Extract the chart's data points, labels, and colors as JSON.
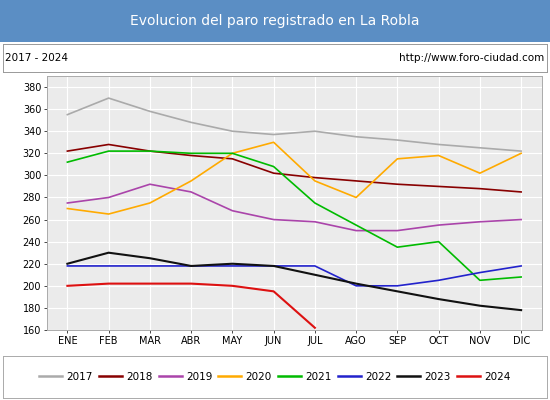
{
  "title": "Evolucion del paro registrado en La Robla",
  "title_bg": "#5b8ec4",
  "subtitle_left": "2017 - 2024",
  "subtitle_right": "http://www.foro-ciudad.com",
  "months": [
    "ENE",
    "FEB",
    "MAR",
    "ABR",
    "MAY",
    "JUN",
    "JUL",
    "AGO",
    "SEP",
    "OCT",
    "NOV",
    "DIC"
  ],
  "ylim": [
    160,
    390
  ],
  "yticks": [
    160,
    180,
    200,
    220,
    240,
    260,
    280,
    300,
    320,
    340,
    360,
    380
  ],
  "series": {
    "2017": {
      "color": "#aaaaaa",
      "linestyle": "-",
      "linewidth": 1.2,
      "data": [
        355,
        370,
        358,
        348,
        340,
        337,
        340,
        335,
        332,
        328,
        325,
        322
      ]
    },
    "2018": {
      "color": "#880000",
      "linestyle": "-",
      "linewidth": 1.2,
      "data": [
        322,
        328,
        322,
        318,
        315,
        302,
        298,
        295,
        292,
        290,
        288,
        285
      ]
    },
    "2019": {
      "color": "#aa44aa",
      "linestyle": "-",
      "linewidth": 1.2,
      "data": [
        275,
        280,
        292,
        285,
        268,
        260,
        258,
        250,
        250,
        255,
        258,
        260
      ]
    },
    "2020": {
      "color": "#ffaa00",
      "linestyle": "-",
      "linewidth": 1.2,
      "data": [
        270,
        265,
        275,
        295,
        320,
        330,
        295,
        280,
        315,
        318,
        302,
        320
      ]
    },
    "2021": {
      "color": "#00bb00",
      "linestyle": "-",
      "linewidth": 1.2,
      "data": [
        312,
        322,
        322,
        320,
        320,
        308,
        275,
        255,
        235,
        240,
        205,
        208
      ]
    },
    "2022": {
      "color": "#2222cc",
      "linestyle": "-",
      "linewidth": 1.2,
      "data": [
        218,
        218,
        218,
        218,
        218,
        218,
        218,
        200,
        200,
        205,
        212,
        218
      ]
    },
    "2023": {
      "color": "#111111",
      "linestyle": "-",
      "linewidth": 1.5,
      "data": [
        220,
        230,
        225,
        218,
        220,
        218,
        210,
        202,
        195,
        188,
        182,
        178
      ]
    },
    "2024": {
      "color": "#dd1111",
      "linestyle": "-",
      "linewidth": 1.5,
      "data": [
        200,
        202,
        202,
        202,
        200,
        195,
        162,
        null,
        null,
        null,
        null,
        null
      ]
    }
  }
}
